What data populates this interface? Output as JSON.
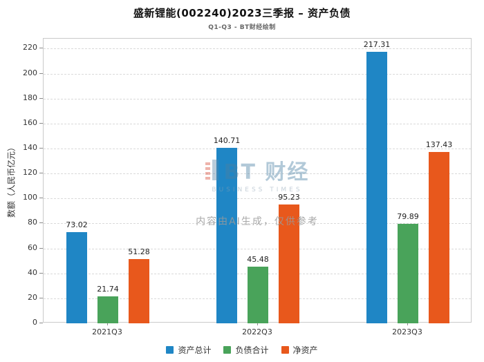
{
  "chart_data": {
    "type": "bar",
    "title": "盛新锂能(002240)2023三季报 – 资产负债",
    "subtitle": "Q1-Q3 - BT财经绘制",
    "ylabel": "数额（人民币亿元）",
    "categories": [
      "2021Q3",
      "2022Q3",
      "2023Q3"
    ],
    "series": [
      {
        "name": "资产总计",
        "color": "#1f86c5",
        "values": [
          73.02,
          140.71,
          217.31
        ]
      },
      {
        "name": "负债合计",
        "color": "#49a35a",
        "values": [
          21.74,
          45.48,
          79.89
        ]
      },
      {
        "name": "净资产",
        "color": "#e8581c",
        "values": [
          51.28,
          95.23,
          137.43
        ]
      }
    ],
    "ylim": [
      0,
      228
    ],
    "yticks": [
      0,
      20,
      40,
      60,
      80,
      100,
      120,
      140,
      160,
      180,
      200,
      220
    ],
    "grid": "horizontal-dashed",
    "legend_position": "bottom",
    "value_labels": true
  },
  "watermark": {
    "logo_main": "BT 财经",
    "logo_sub": "BUSINESS TIMES",
    "disclaimer": "内容由AI生成，仅供参考"
  }
}
